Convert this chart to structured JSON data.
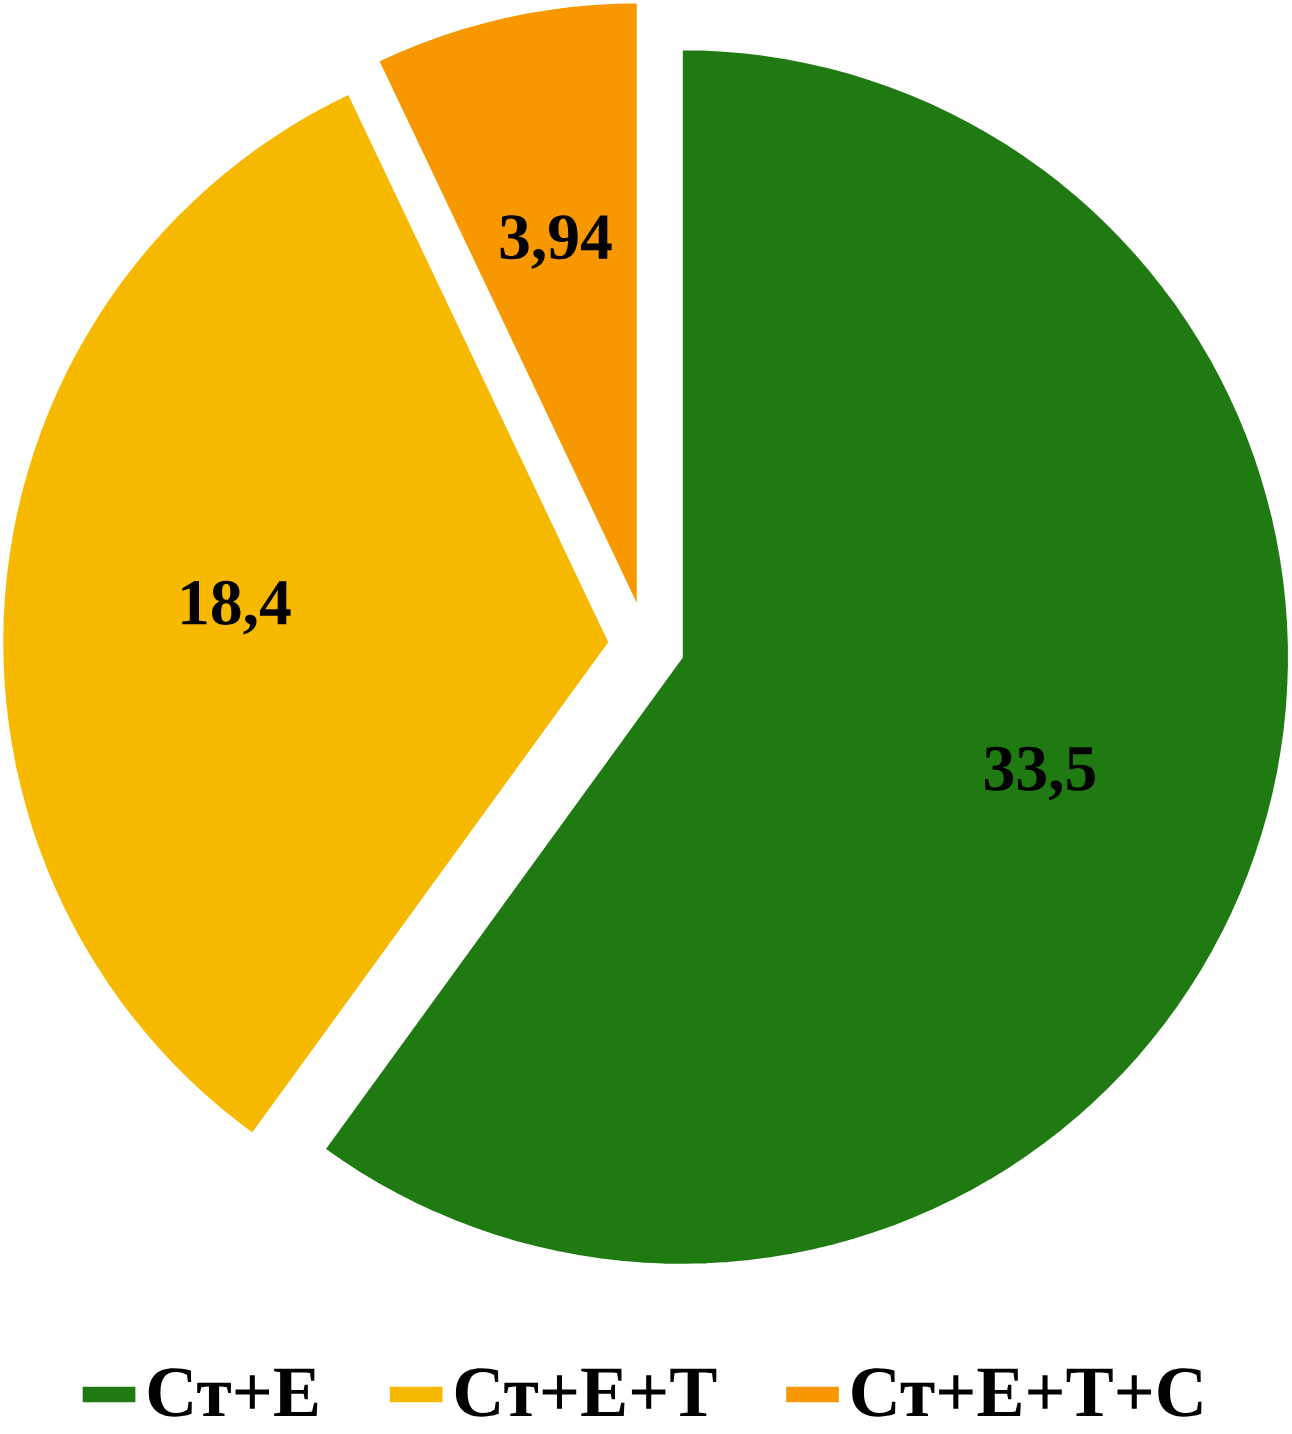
{
  "chart_data": {
    "type": "pie",
    "categories": [
      "Ст+Е",
      "Ст+Е+Т",
      "Ст+Е+Т+С"
    ],
    "values": [
      33.5,
      18.4,
      3.94
    ],
    "value_labels": [
      "33,5",
      "18,4",
      "3,94"
    ],
    "colors": [
      "#1f7a12",
      "#f7b900",
      "#f79800"
    ],
    "legend": "bottom"
  }
}
